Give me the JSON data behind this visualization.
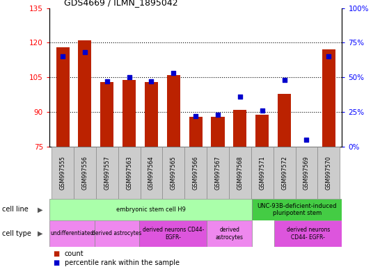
{
  "title": "GDS4669 / ILMN_1895042",
  "samples": [
    "GSM997555",
    "GSM997556",
    "GSM997557",
    "GSM997563",
    "GSM997564",
    "GSM997565",
    "GSM997566",
    "GSM997567",
    "GSM997568",
    "GSM997571",
    "GSM997572",
    "GSM997569",
    "GSM997570"
  ],
  "counts": [
    118,
    121,
    103,
    104,
    103,
    106,
    88,
    88,
    91,
    89,
    98,
    75,
    117
  ],
  "percentiles": [
    65,
    68,
    47,
    50,
    47,
    53,
    22,
    23,
    36,
    26,
    48,
    5,
    65
  ],
  "ylim_left": [
    75,
    135
  ],
  "ylim_right": [
    0,
    100
  ],
  "yticks_left": [
    75,
    90,
    105,
    120,
    135
  ],
  "yticks_right": [
    0,
    25,
    50,
    75,
    100
  ],
  "hgrid_at": [
    90,
    105,
    120
  ],
  "bar_color": "#bb2200",
  "dot_color": "#0000cc",
  "cell_line_groups": [
    {
      "label": "embryonic stem cell H9",
      "start": 0,
      "end": 9,
      "color": "#aaffaa"
    },
    {
      "label": "UNC-93B-deficient-induced\npluripotent stem",
      "start": 9,
      "end": 13,
      "color": "#44cc44"
    }
  ],
  "cell_type_groups": [
    {
      "label": "undifferentiated",
      "start": 0,
      "end": 2,
      "color": "#ee88ee"
    },
    {
      "label": "derived astrocytes",
      "start": 2,
      "end": 4,
      "color": "#ee88ee"
    },
    {
      "label": "derived neurons CD44-\nEGFR-",
      "start": 4,
      "end": 7,
      "color": "#dd55dd"
    },
    {
      "label": "derived\nastrocytes",
      "start": 7,
      "end": 9,
      "color": "#ee88ee"
    },
    {
      "label": "derived neurons\nCD44- EGFR-",
      "start": 10,
      "end": 13,
      "color": "#dd55dd"
    }
  ],
  "count_label": "count",
  "percentile_label": "percentile rank within the sample",
  "legend_count_color": "#bb2200",
  "legend_dot_color": "#0000cc"
}
